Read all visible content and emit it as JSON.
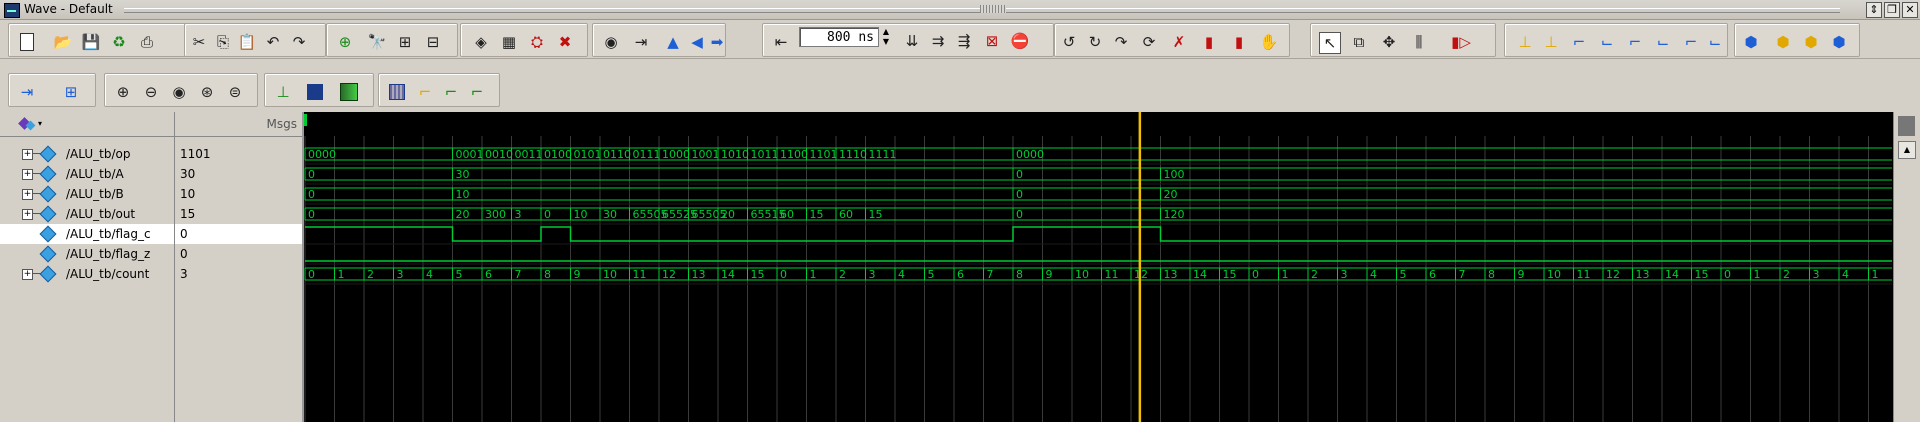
{
  "window": {
    "title": "Wave - Default"
  },
  "toolbar": {
    "time_value": "800 ns",
    "groups1": [
      [
        "new-file",
        "open-folder",
        "save",
        "reload",
        "print"
      ],
      [
        "cut",
        "copy",
        "paste",
        "undo",
        "redo"
      ],
      [
        "add-wave",
        "find",
        "expand-group",
        "collapse-group"
      ],
      [
        "compile",
        "simulate-config",
        "break",
        "end-sim"
      ]
    ]
  },
  "pane": {
    "msgs_label": "Msgs"
  },
  "signals": [
    {
      "name": "/ALU_tb/op",
      "value": "1101",
      "expandable": true
    },
    {
      "name": "/ALU_tb/A",
      "value": "30",
      "expandable": true
    },
    {
      "name": "/ALU_tb/B",
      "value": "10",
      "expandable": true
    },
    {
      "name": "/ALU_tb/out",
      "value": "15",
      "expandable": true
    },
    {
      "name": "/ALU_tb/flag_c",
      "value": "0",
      "expandable": false
    },
    {
      "name": "/ALU_tb/flag_z",
      "value": "0",
      "expandable": false
    },
    {
      "name": "/ALU_tb/count",
      "value": "3",
      "expandable": true
    }
  ],
  "waves": {
    "op": [
      [
        "0000",
        0
      ],
      [
        "0001",
        5
      ],
      [
        "0010",
        6
      ],
      [
        "0011",
        7
      ],
      [
        "0100",
        8
      ],
      [
        "0101",
        9
      ],
      [
        "0110",
        10
      ],
      [
        "0111",
        11
      ],
      [
        "1000",
        12
      ],
      [
        "1001",
        13
      ],
      [
        "1010",
        14
      ],
      [
        "1011",
        15
      ],
      [
        "1100",
        16
      ],
      [
        "1101",
        17
      ],
      [
        "1110",
        18
      ],
      [
        "1111",
        19
      ],
      [
        "0000",
        24
      ]
    ],
    "A": [
      [
        "0",
        0
      ],
      [
        "30",
        5
      ],
      [
        "0",
        24
      ],
      [
        "100",
        29
      ]
    ],
    "B": [
      [
        "0",
        0
      ],
      [
        "10",
        5
      ],
      [
        "0",
        24
      ],
      [
        "20",
        29
      ]
    ],
    "out": [
      [
        "0",
        0
      ],
      [
        "20",
        5
      ],
      [
        "300",
        6
      ],
      [
        "3",
        7
      ],
      [
        "0",
        8
      ],
      [
        "10",
        9
      ],
      [
        "30",
        10
      ],
      [
        "65505",
        11
      ],
      [
        "65525",
        12
      ],
      [
        "65505",
        13
      ],
      [
        "20",
        14
      ],
      [
        "65515",
        15
      ],
      [
        "60",
        16
      ],
      [
        "15",
        17
      ],
      [
        "60",
        18
      ],
      [
        "15",
        19
      ],
      [
        "0",
        24
      ],
      [
        "120",
        29
      ]
    ],
    "count": [
      "0",
      "1",
      "2",
      "3",
      "4",
      "5",
      "6",
      "7",
      "8",
      "9",
      "10",
      "11",
      "12",
      "13",
      "14",
      "15",
      "0",
      "1",
      "2",
      "3",
      "4",
      "5",
      "6",
      "7",
      "8",
      "9",
      "10",
      "11",
      "12",
      "13",
      "14",
      "15",
      "0",
      "1",
      "2",
      "3",
      "4",
      "5",
      "6",
      "7",
      "8",
      "9",
      "10",
      "11",
      "12",
      "13",
      "14",
      "15",
      "0",
      "1",
      "2",
      "3",
      "4",
      "1"
    ],
    "flag_c": [
      [
        0,
        1
      ],
      [
        5,
        0
      ],
      [
        8,
        1
      ],
      [
        9,
        0
      ],
      [
        24,
        1
      ],
      [
        29,
        0
      ]
    ],
    "flag_z": [
      [
        0,
        0
      ]
    ]
  },
  "cursor": {
    "color": "#f0c000",
    "label": ""
  },
  "colors": {
    "wave": "#00cc33",
    "grid": "#3a3a3a",
    "bg": "#000000",
    "cursor": "#f0c000"
  }
}
